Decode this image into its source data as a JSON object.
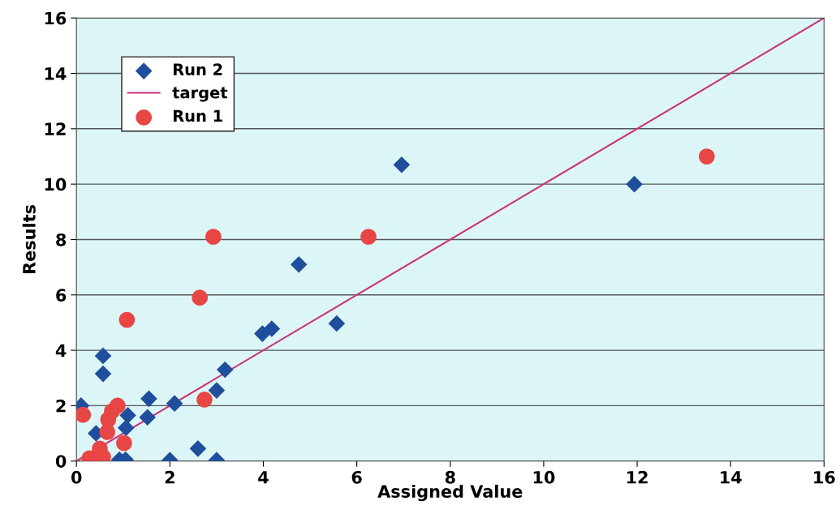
{
  "chart_data": {
    "type": "scatter",
    "xlabel": "Assigned Value",
    "ylabel": "Results",
    "xlim": [
      0,
      16
    ],
    "ylim": [
      0,
      16
    ],
    "xticks": [
      0,
      2,
      4,
      6,
      8,
      10,
      12,
      14,
      16
    ],
    "yticks": [
      0,
      2,
      4,
      6,
      8,
      10,
      12,
      14,
      16
    ],
    "grid": "y",
    "legend": "top left",
    "series": [
      {
        "name": "Run 2",
        "marker": "diamond",
        "color": "#1f4e9c",
        "x": [
          0.1,
          0.42,
          0.57,
          0.57,
          1.55,
          1.52,
          2.1,
          3.0,
          3.18,
          1.1,
          1.06,
          2.6,
          2.0,
          3.0,
          0.92,
          1.05,
          3.98,
          4.18,
          4.76,
          5.57,
          6.96,
          11.94
        ],
        "values": [
          2.0,
          1.0,
          3.8,
          3.15,
          2.25,
          1.58,
          2.08,
          2.55,
          3.3,
          1.65,
          1.2,
          0.45,
          0.03,
          0.03,
          0.05,
          0.05,
          4.6,
          4.78,
          7.1,
          4.97,
          10.7,
          10.0
        ]
      },
      {
        "name": "target",
        "type": "line",
        "marker": "none",
        "color": "#cc3377",
        "x": [
          0,
          16
        ],
        "values": [
          0,
          16
        ]
      },
      {
        "name": "Run 1",
        "marker": "circle",
        "color": "#e84545",
        "x": [
          1.08,
          2.64,
          2.93,
          6.25,
          13.49,
          2.74,
          0.14,
          0.88,
          0.5,
          0.68,
          0.76,
          0.66,
          1.02,
          0.57,
          0.28
        ],
        "values": [
          5.1,
          5.9,
          8.1,
          8.1,
          11.0,
          2.22,
          1.67,
          2.0,
          0.45,
          1.5,
          1.8,
          1.05,
          0.65,
          0.15,
          0.1
        ]
      }
    ]
  }
}
